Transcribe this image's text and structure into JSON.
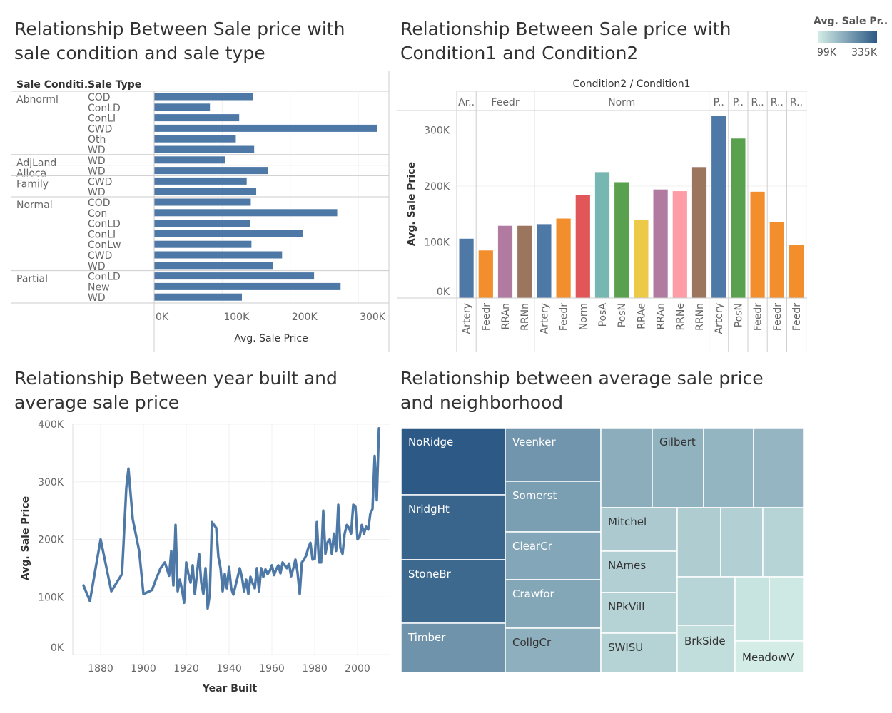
{
  "titles": {
    "bar_chart": "Relationship Between Sale price with sale condition and sale type",
    "cond_chart": "Relationship Between Sale price with Condition1 and Condition2",
    "line_chart": "Relationship Between year built and average sale price",
    "treemap": "Relationship between average sale price and neighborhood"
  },
  "legend": {
    "title": "Avg. Sale Pr..",
    "min_label": "99K",
    "max_label": "335K",
    "color_low": "#d3ede6",
    "color_high": "#2c5985"
  },
  "chart_data": [
    {
      "type": "bar",
      "orientation": "horizontal",
      "row_headers": [
        "Sale Conditi..",
        "Sale Type"
      ],
      "xlabel": "Avg. Sale Price",
      "xlim": [
        0,
        345000
      ],
      "xticks": [
        0,
        100000,
        200000,
        300000
      ],
      "xtick_labels": [
        "0K",
        "100K",
        "200K",
        "300K"
      ],
      "bar_color": "#4e79a7",
      "groups": [
        {
          "name": "Abnorml",
          "rows": [
            {
              "type": "COD",
              "value": 145000
            },
            {
              "type": "ConLD",
              "value": 82000
            },
            {
              "type": "ConLI",
              "value": 125000
            },
            {
              "type": "CWD",
              "value": 328000
            },
            {
              "type": "Oth",
              "value": 120000
            },
            {
              "type": "WD",
              "value": 147000
            }
          ]
        },
        {
          "name": "AdjLand",
          "rows": [
            {
              "type": "WD",
              "value": 104000
            }
          ]
        },
        {
          "name": "Alloca",
          "rows": [
            {
              "type": "WD",
              "value": 167000
            }
          ]
        },
        {
          "name": "Family",
          "rows": [
            {
              "type": "CWD",
              "value": 136000
            },
            {
              "type": "WD",
              "value": 150000
            }
          ]
        },
        {
          "name": "Normal",
          "rows": [
            {
              "type": "COD",
              "value": 142000
            },
            {
              "type": "Con",
              "value": 269000
            },
            {
              "type": "ConLD",
              "value": 141000
            },
            {
              "type": "ConLI",
              "value": 219000
            },
            {
              "type": "ConLw",
              "value": 143000
            },
            {
              "type": "CWD",
              "value": 188000
            },
            {
              "type": "WD",
              "value": 175000
            }
          ]
        },
        {
          "name": "Partial",
          "rows": [
            {
              "type": "ConLD",
              "value": 235000
            },
            {
              "type": "New",
              "value": 274000
            },
            {
              "type": "WD",
              "value": 129000
            }
          ]
        }
      ]
    },
    {
      "type": "bar",
      "header": "Condition2 / Condition1",
      "ylabel": "Avg. Sale Price",
      "ylim": [
        0,
        335000
      ],
      "yticks": [
        0,
        100000,
        200000,
        300000
      ],
      "ytick_labels": [
        "0K",
        "100K",
        "200K",
        "300K"
      ],
      "groups": [
        {
          "label": "Ar..",
          "bars": [
            {
              "cat": "Artery",
              "value": 106000,
              "color": "#4e79a7"
            }
          ]
        },
        {
          "label": "Feedr",
          "bars": [
            {
              "cat": "Feedr",
              "value": 85000,
              "color": "#f28e2b"
            },
            {
              "cat": "RRAn",
              "value": 129000,
              "color": "#b07aa1"
            },
            {
              "cat": "RRNn",
              "value": 129000,
              "color": "#9c755f"
            }
          ]
        },
        {
          "label": "Norm",
          "bars": [
            {
              "cat": "Artery",
              "value": 132000,
              "color": "#4e79a7"
            },
            {
              "cat": "Feedr",
              "value": 142000,
              "color": "#f28e2b"
            },
            {
              "cat": "Norm",
              "value": 184000,
              "color": "#e15759"
            },
            {
              "cat": "PosA",
              "value": 225000,
              "color": "#76b7b2"
            },
            {
              "cat": "PosN",
              "value": 207000,
              "color": "#59a14f"
            },
            {
              "cat": "RRAe",
              "value": 139000,
              "color": "#edc948"
            },
            {
              "cat": "RRAn",
              "value": 194000,
              "color": "#b07aa1"
            },
            {
              "cat": "RRNe",
              "value": 191000,
              "color": "#ff9da7"
            },
            {
              "cat": "RRNn",
              "value": 234000,
              "color": "#9c755f"
            }
          ]
        },
        {
          "label": "P..",
          "bars": [
            {
              "cat": "Artery",
              "value": 326000,
              "color": "#4e79a7"
            }
          ]
        },
        {
          "label": "P..",
          "bars": [
            {
              "cat": "PosN",
              "value": 285000,
              "color": "#59a14f"
            }
          ]
        },
        {
          "label": "R..",
          "bars": [
            {
              "cat": "Feedr",
              "value": 190000,
              "color": "#f28e2b"
            }
          ]
        },
        {
          "label": "R..",
          "bars": [
            {
              "cat": "Feedr",
              "value": 136000,
              "color": "#f28e2b"
            }
          ]
        },
        {
          "label": "R..",
          "bars": [
            {
              "cat": "Feedr",
              "value": 95000,
              "color": "#f28e2b"
            }
          ]
        }
      ]
    },
    {
      "type": "line",
      "xlabel": "Year Built",
      "ylabel": "Avg. Sale Price",
      "xlim": [
        1867,
        2015
      ],
      "ylim": [
        0,
        400000
      ],
      "xticks": [
        1880,
        1900,
        1920,
        1940,
        1960,
        1980,
        2000
      ],
      "yticks": [
        0,
        100000,
        200000,
        300000,
        400000
      ],
      "ytick_labels": [
        "0K",
        "100K",
        "200K",
        "300K",
        "400K"
      ],
      "line_color": "#4e79a7",
      "x": [
        1872,
        1875,
        1880,
        1885,
        1890,
        1892,
        1893,
        1895,
        1898,
        1900,
        1904,
        1906,
        1908,
        1910,
        1912,
        1913,
        1914,
        1915,
        1916,
        1917,
        1918,
        1919,
        1920,
        1921,
        1922,
        1923,
        1924,
        1925,
        1926,
        1927,
        1928,
        1929,
        1930,
        1931,
        1932,
        1934,
        1935,
        1936,
        1937,
        1938,
        1939,
        1940,
        1941,
        1942,
        1945,
        1946,
        1947,
        1948,
        1949,
        1950,
        1951,
        1952,
        1953,
        1954,
        1955,
        1956,
        1957,
        1958,
        1959,
        1960,
        1961,
        1962,
        1963,
        1964,
        1965,
        1966,
        1967,
        1968,
        1969,
        1970,
        1971,
        1972,
        1973,
        1974,
        1975,
        1976,
        1977,
        1978,
        1979,
        1980,
        1981,
        1982,
        1983,
        1984,
        1985,
        1986,
        1987,
        1988,
        1989,
        1990,
        1991,
        1992,
        1993,
        1994,
        1995,
        1996,
        1997,
        1998,
        1999,
        2000,
        2001,
        2002,
        2003,
        2004,
        2005,
        2006,
        2007,
        2008,
        2009,
        2010
      ],
      "y": [
        120000,
        93000,
        200000,
        110000,
        140000,
        290000,
        323000,
        235000,
        180000,
        105000,
        112000,
        132000,
        150000,
        160000,
        137000,
        180000,
        120000,
        225000,
        110000,
        130000,
        113000,
        90000,
        160000,
        140000,
        125000,
        155000,
        105000,
        140000,
        175000,
        125000,
        105000,
        150000,
        80000,
        105000,
        230000,
        220000,
        170000,
        150000,
        110000,
        140000,
        115000,
        152000,
        115000,
        104000,
        150000,
        135000,
        110000,
        130000,
        105000,
        135000,
        124000,
        115000,
        150000,
        110000,
        150000,
        135000,
        148000,
        140000,
        145000,
        155000,
        138000,
        148000,
        155000,
        141000,
        160000,
        155000,
        150000,
        158000,
        136000,
        150000,
        165000,
        142000,
        105000,
        160000,
        165000,
        172000,
        185000,
        194000,
        165000,
        166000,
        230000,
        160000,
        160000,
        250000,
        175000,
        195000,
        200000,
        175000,
        210000,
        180000,
        260000,
        185000,
        175000,
        210000,
        225000,
        220000,
        210000,
        260000,
        258000,
        200000,
        205000,
        225000,
        210000,
        222000,
        217000,
        245000,
        253000,
        345000,
        268000,
        393000
      ]
    },
    {
      "type": "treemap",
      "color_metric": "Avg. Sale Price",
      "color_low": "#d3ede6",
      "color_high": "#2c5985",
      "labels": [
        "NoRidge",
        "NridgHt",
        "StoneBr",
        "Timber",
        "Veenker",
        "Somerst",
        "ClearCr",
        "Crawfor",
        "CollgCr",
        "Gilbert",
        "Mitchel",
        "NAmes",
        "NPkVill",
        "SWISU",
        "BrkSide",
        "MeadowV"
      ],
      "values": [
        335000,
        316000,
        310000,
        242000,
        239000,
        225000,
        212000,
        210000,
        197000,
        192000,
        156000,
        146000,
        142000,
        142000,
        124000,
        99000
      ]
    }
  ]
}
